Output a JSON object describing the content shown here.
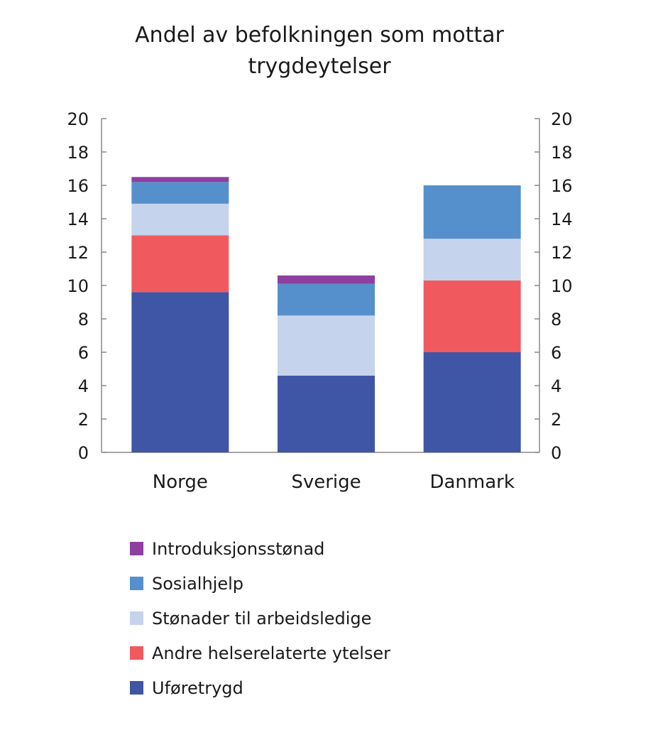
{
  "chart_data": {
    "type": "bar",
    "stacked": true,
    "title": "Andel av befolkningen som mottar trygdeytelser",
    "title_lines": [
      "Andel av befolkningen som mottar",
      "trygdeytelser"
    ],
    "categories": [
      "Norge",
      "Sverige",
      "Danmark"
    ],
    "ylim": [
      0,
      20
    ],
    "yticks": [
      0,
      2,
      4,
      6,
      8,
      10,
      12,
      14,
      16,
      18,
      20
    ],
    "secondary_y_axis": true,
    "grid": false,
    "legend_placement": "bottom",
    "series": [
      {
        "name": "Uføretrygd",
        "color": "#3f55a5",
        "values": [
          9.6,
          4.6,
          6.0
        ]
      },
      {
        "name": "Andre helserelaterte ytelser",
        "color": "#f05a5f",
        "values": [
          3.4,
          0,
          4.3
        ]
      },
      {
        "name": "Stønader til arbeidsledige",
        "color": "#c5d3ec",
        "values": [
          1.9,
          3.6,
          2.5
        ]
      },
      {
        "name": "Sosialhjelp",
        "color": "#5590cc",
        "values": [
          1.3,
          1.9,
          3.2
        ]
      },
      {
        "name": "Introduksjonsstønad",
        "color": "#8e3fa0",
        "values": [
          0.3,
          0.5,
          0
        ]
      }
    ]
  }
}
